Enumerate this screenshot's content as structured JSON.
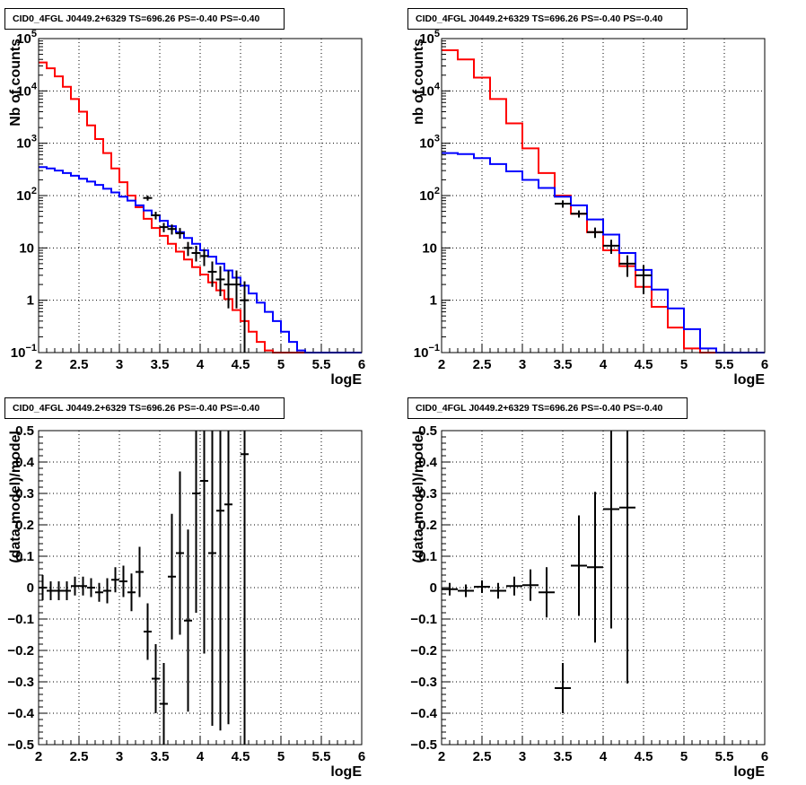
{
  "chart_data": [
    {
      "type": "line",
      "title": "CID0_4FGL J0449.2+6329 TS=696.26 PS=-0.40 PS=-0.40",
      "xlabel": "logE",
      "ylabel": "Nb of counts",
      "xlim": [
        2,
        6
      ],
      "ylim": [
        0.1,
        100000
      ],
      "yscale": "log",
      "grid": true,
      "x_ticks": [
        "2",
        "2.5",
        "3",
        "3.5",
        "4",
        "4.5",
        "5",
        "5.5",
        "6"
      ],
      "y_ticks": [
        {
          "value": 0.1,
          "label": "10",
          "sup": "−1"
        },
        {
          "value": 1,
          "label": "1",
          "sup": ""
        },
        {
          "value": 10,
          "label": "10",
          "sup": ""
        },
        {
          "value": 100,
          "label": "10",
          "sup": "2"
        },
        {
          "value": 1000,
          "label": "10",
          "sup": "3"
        },
        {
          "value": 10000,
          "label": "10",
          "sup": "4"
        },
        {
          "value": 100000,
          "label": "10",
          "sup": "5"
        }
      ],
      "bin_edges": [
        2.0,
        2.1,
        2.2,
        2.3,
        2.4,
        2.5,
        2.6,
        2.7,
        2.8,
        2.9,
        3.0,
        3.1,
        3.2,
        3.3,
        3.4,
        3.5,
        3.6,
        3.7,
        3.8,
        3.9,
        4.0,
        4.1,
        4.2,
        4.3,
        4.4,
        4.5,
        4.6,
        4.7,
        4.8,
        4.9,
        5.0,
        5.1,
        5.2,
        5.3,
        5.4,
        5.5,
        5.6,
        5.7,
        5.8,
        5.9,
        6.0
      ],
      "series": [
        {
          "color": "#ff0000",
          "values": [
            35000,
            27000,
            19000,
            12000,
            7000,
            4000,
            2200,
            1200,
            650,
            330,
            180,
            100,
            60,
            36,
            24,
            17,
            12,
            8.5,
            6,
            4.3,
            3.1,
            2.2,
            1.55,
            1.05,
            0.65,
            0.4,
            0.25,
            0.16,
            0.11,
            0.1,
            0.1,
            0.1,
            0.1,
            0.1,
            0.1,
            0.1,
            0.1,
            0.1,
            0.1,
            0.1
          ]
        },
        {
          "color": "#0000ff",
          "values": [
            350,
            330,
            300,
            270,
            240,
            210,
            185,
            160,
            135,
            115,
            95,
            80,
            65,
            52,
            42,
            33,
            26,
            20,
            15.5,
            12,
            9,
            6.8,
            5,
            3.7,
            2.7,
            1.9,
            1.35,
            0.9,
            0.6,
            0.4,
            0.25,
            0.16,
            0.11,
            0.1,
            0.1,
            0.1,
            0.1,
            0.1,
            0.1,
            0.1
          ]
        }
      ],
      "data_points": [
        {
          "x": 3.35,
          "y": 90,
          "ylo": 80,
          "yhi": 100
        },
        {
          "x": 3.45,
          "y": 42,
          "ylo": 35,
          "yhi": 49
        },
        {
          "x": 3.55,
          "y": 25,
          "ylo": 20,
          "yhi": 30
        },
        {
          "x": 3.65,
          "y": 23,
          "ylo": 18,
          "yhi": 28
        },
        {
          "x": 3.75,
          "y": 19,
          "ylo": 15,
          "yhi": 24
        },
        {
          "x": 3.85,
          "y": 10,
          "ylo": 7,
          "yhi": 13
        },
        {
          "x": 3.95,
          "y": 8,
          "ylo": 5.5,
          "yhi": 11
        },
        {
          "x": 4.05,
          "y": 7,
          "ylo": 4.5,
          "yhi": 9.5
        },
        {
          "x": 4.15,
          "y": 3.5,
          "ylo": 1.8,
          "yhi": 5.5
        },
        {
          "x": 4.25,
          "y": 2.5,
          "ylo": 1.2,
          "yhi": 4.5
        },
        {
          "x": 4.35,
          "y": 2,
          "ylo": 0.7,
          "yhi": 3.7
        },
        {
          "x": 4.45,
          "y": 2,
          "ylo": 0.7,
          "yhi": 3.7
        },
        {
          "x": 4.55,
          "y": 1,
          "ylo": 0.1,
          "yhi": 2.3
        }
      ]
    },
    {
      "type": "line",
      "title": "CID0_4FGL J0449.2+6329 TS=696.26 PS=-0.40 PS=-0.40",
      "xlabel": "logE",
      "ylabel": "nb of counts",
      "xlim": [
        2,
        6
      ],
      "ylim": [
        0.1,
        100000
      ],
      "yscale": "log",
      "grid": true,
      "x_ticks": [
        "2",
        "2.5",
        "3",
        "3.5",
        "4",
        "4.5",
        "5",
        "5.5",
        "6"
      ],
      "y_ticks": [
        {
          "value": 0.1,
          "label": "10",
          "sup": "−1"
        },
        {
          "value": 1,
          "label": "1",
          "sup": ""
        },
        {
          "value": 10,
          "label": "10",
          "sup": ""
        },
        {
          "value": 100,
          "label": "10",
          "sup": "2"
        },
        {
          "value": 1000,
          "label": "10",
          "sup": "3"
        },
        {
          "value": 10000,
          "label": "10",
          "sup": "4"
        },
        {
          "value": 100000,
          "label": "10",
          "sup": "5"
        }
      ],
      "bin_edges": [
        2.0,
        2.2,
        2.4,
        2.6,
        2.8,
        3.0,
        3.2,
        3.4,
        3.6,
        3.8,
        4.0,
        4.2,
        4.4,
        4.6,
        4.8,
        5.0,
        5.2,
        5.4,
        5.6,
        5.8,
        6.0
      ],
      "series": [
        {
          "color": "#ff0000",
          "values": [
            60000,
            40000,
            18000,
            7000,
            2400,
            800,
            270,
            100,
            45,
            20,
            9,
            4.5,
            1.8,
            0.75,
            0.3,
            0.12,
            0.1,
            0.1,
            0.1,
            0.1
          ]
        },
        {
          "color": "#0000ff",
          "values": [
            650,
            620,
            520,
            400,
            290,
            200,
            140,
            95,
            65,
            35,
            18,
            8,
            3.8,
            1.6,
            0.7,
            0.28,
            0.12,
            0.1,
            0.1,
            0.1
          ]
        }
      ],
      "data_points": [
        {
          "x": 3.5,
          "y": 70,
          "ylo": 60,
          "yhi": 80
        },
        {
          "x": 3.7,
          "y": 45,
          "ylo": 38,
          "yhi": 52
        },
        {
          "x": 3.9,
          "y": 20,
          "ylo": 15.5,
          "yhi": 24.5
        },
        {
          "x": 4.1,
          "y": 11,
          "ylo": 7.7,
          "yhi": 14.3
        },
        {
          "x": 4.3,
          "y": 5,
          "ylo": 2.8,
          "yhi": 7.2
        },
        {
          "x": 4.5,
          "y": 3,
          "ylo": 1.3,
          "yhi": 4.7
        }
      ]
    },
    {
      "type": "scatter",
      "title": "CID0_4FGL J0449.2+6329 TS=696.26 PS=-0.40 PS=-0.40",
      "xlabel": "logE",
      "ylabel": "(data-model)/model",
      "xlim": [
        2,
        6
      ],
      "ylim": [
        -0.5,
        0.5
      ],
      "yscale": "linear",
      "grid": true,
      "x_ticks": [
        "2",
        "2.5",
        "3",
        "3.5",
        "4",
        "4.5",
        "5",
        "5.5",
        "6"
      ],
      "y_ticks": [
        {
          "value": -0.5,
          "label": "−0.5"
        },
        {
          "value": -0.4,
          "label": "−0.4"
        },
        {
          "value": -0.3,
          "label": "−0.3"
        },
        {
          "value": -0.2,
          "label": "−0.2"
        },
        {
          "value": -0.1,
          "label": "−0.1"
        },
        {
          "value": 0,
          "label": "0"
        },
        {
          "value": 0.1,
          "label": "0.1"
        },
        {
          "value": 0.2,
          "label": "0.2"
        },
        {
          "value": 0.3,
          "label": "0.3"
        },
        {
          "value": 0.4,
          "label": "0.4"
        },
        {
          "value": 0.5,
          "label": "0.5"
        }
      ],
      "xerr": 0.05,
      "points": [
        {
          "x": 2.05,
          "y": 0.0,
          "e": 0.04
        },
        {
          "x": 2.15,
          "y": -0.01,
          "e": 0.03
        },
        {
          "x": 2.25,
          "y": -0.01,
          "e": 0.03
        },
        {
          "x": 2.35,
          "y": -0.01,
          "e": 0.03
        },
        {
          "x": 2.45,
          "y": 0.005,
          "e": 0.03
        },
        {
          "x": 2.55,
          "y": 0.005,
          "e": 0.03
        },
        {
          "x": 2.65,
          "y": 0.0,
          "e": 0.03
        },
        {
          "x": 2.75,
          "y": -0.015,
          "e": 0.03
        },
        {
          "x": 2.85,
          "y": -0.01,
          "e": 0.04
        },
        {
          "x": 2.95,
          "y": 0.025,
          "e": 0.04
        },
        {
          "x": 3.05,
          "y": 0.02,
          "e": 0.05
        },
        {
          "x": 3.15,
          "y": -0.015,
          "e": 0.06
        },
        {
          "x": 3.25,
          "y": 0.05,
          "e": 0.08
        },
        {
          "x": 3.35,
          "y": -0.14,
          "e": 0.09
        },
        {
          "x": 3.45,
          "y": -0.29,
          "e": 0.11
        },
        {
          "x": 3.55,
          "y": -0.37,
          "e": 0.13
        },
        {
          "x": 3.65,
          "y": 0.035,
          "e": 0.2
        },
        {
          "x": 3.75,
          "y": 0.11,
          "e": 0.26
        },
        {
          "x": 3.85,
          "y": -0.105,
          "e": 0.29
        },
        {
          "x": 3.95,
          "y": 0.3,
          "e": 0.38
        },
        {
          "x": 4.05,
          "y": 0.34,
          "e": 0.55
        },
        {
          "x": 4.15,
          "y": 0.11,
          "e": 0.55
        },
        {
          "x": 4.25,
          "y": 0.245,
          "e": 0.7
        },
        {
          "x": 4.35,
          "y": 0.265,
          "e": 0.7
        },
        {
          "x": 4.55,
          "y": 0.425,
          "e": 1.0
        }
      ]
    },
    {
      "type": "scatter",
      "title": "CID0_4FGL J0449.2+6329 TS=696.26 PS=-0.40 PS=-0.40",
      "xlabel": "logE",
      "ylabel": "(data-model)/model",
      "xlim": [
        2,
        6
      ],
      "ylim": [
        -0.5,
        0.5
      ],
      "yscale": "linear",
      "grid": true,
      "x_ticks": [
        "2",
        "2.5",
        "3",
        "3.5",
        "4",
        "4.5",
        "5",
        "5.5",
        "6"
      ],
      "y_ticks": [
        {
          "value": -0.5,
          "label": "−0.5"
        },
        {
          "value": -0.4,
          "label": "−0.4"
        },
        {
          "value": -0.3,
          "label": "−0.3"
        },
        {
          "value": -0.2,
          "label": "−0.2"
        },
        {
          "value": -0.1,
          "label": "−0.1"
        },
        {
          "value": 0,
          "label": "0"
        },
        {
          "value": 0.1,
          "label": "0.1"
        },
        {
          "value": 0.2,
          "label": "0.2"
        },
        {
          "value": 0.3,
          "label": "0.3"
        },
        {
          "value": 0.4,
          "label": "0.4"
        },
        {
          "value": 0.5,
          "label": "0.5"
        }
      ],
      "xerr": 0.1,
      "points": [
        {
          "x": 2.1,
          "y": -0.005,
          "e": 0.02
        },
        {
          "x": 2.3,
          "y": -0.01,
          "e": 0.02
        },
        {
          "x": 2.5,
          "y": 0.003,
          "e": 0.02
        },
        {
          "x": 2.7,
          "y": -0.01,
          "e": 0.025
        },
        {
          "x": 2.9,
          "y": 0.005,
          "e": 0.03
        },
        {
          "x": 3.1,
          "y": 0.008,
          "e": 0.05
        },
        {
          "x": 3.3,
          "y": -0.015,
          "e": 0.08
        },
        {
          "x": 3.5,
          "y": -0.32,
          "e": 0.08
        },
        {
          "x": 3.7,
          "y": 0.07,
          "e": 0.16
        },
        {
          "x": 3.9,
          "y": 0.065,
          "e": 0.24
        },
        {
          "x": 4.1,
          "y": 0.25,
          "e": 0.38
        },
        {
          "x": 4.3,
          "y": 0.255,
          "e": 0.56
        }
      ]
    }
  ]
}
